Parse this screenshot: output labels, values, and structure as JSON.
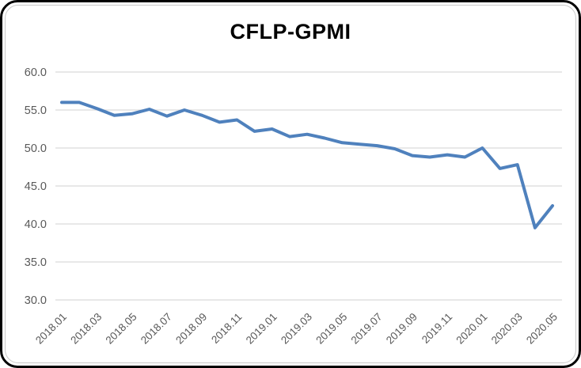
{
  "chart_data": {
    "type": "line",
    "title": "CFLP-GPMI",
    "categories": [
      "2018.01",
      "2018.02",
      "2018.03",
      "2018.04",
      "2018.05",
      "2018.06",
      "2018.07",
      "2018.08",
      "2018.09",
      "2018.10",
      "2018.11",
      "2018.12",
      "2019.01",
      "2019.02",
      "2019.03",
      "2019.04",
      "2019.05",
      "2019.06",
      "2019.07",
      "2019.08",
      "2019.09",
      "2019.10",
      "2019.11",
      "2019.12",
      "2020.01",
      "2020.02",
      "2020.03",
      "2020.04",
      "2020.05"
    ],
    "values": [
      56.0,
      56.0,
      55.2,
      54.3,
      54.5,
      55.1,
      54.2,
      55.0,
      54.3,
      53.4,
      53.7,
      52.2,
      52.5,
      51.5,
      51.8,
      51.3,
      50.7,
      50.5,
      50.3,
      49.9,
      49.0,
      48.8,
      49.1,
      48.8,
      50.0,
      47.3,
      47.8,
      39.5,
      42.4
    ],
    "x_tick_labels": [
      "2018.01",
      "2018.03",
      "2018.05",
      "2018.07",
      "2018.09",
      "2018.11",
      "2019.01",
      "2019.03",
      "2019.05",
      "2019.07",
      "2019.09",
      "2019.11",
      "2020.01",
      "2020.03",
      "2020.05"
    ],
    "y_tick_labels": [
      "60.0",
      "55.0",
      "50.0",
      "45.0",
      "40.0",
      "35.0",
      "30.0"
    ],
    "xlabel": "",
    "ylabel": "",
    "ylim": [
      30,
      60
    ],
    "y_step": 5,
    "grid": true,
    "legend_position": "none",
    "colors": {
      "line": "#4f81bd",
      "gridline": "#d9d9d9",
      "tick_text": "#595959",
      "title_text": "#000000",
      "frame_border": "#000000",
      "background": "#ffffff"
    }
  }
}
